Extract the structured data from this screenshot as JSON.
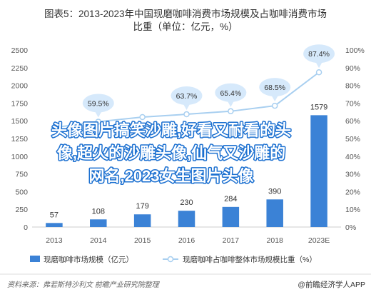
{
  "chart_data": {
    "type": "bar",
    "title_lines": [
      "图表5：2013-2023年中国现磨咖啡消费市场规模及占咖啡消费市场",
      "比重（单位：亿元，%）"
    ],
    "categories": [
      "2013",
      "2014",
      "2015",
      "2016",
      "2017",
      "2018",
      "2023E"
    ],
    "series": [
      {
        "name": "现磨咖啡市场规模（亿元）",
        "type": "bar",
        "axis": "left",
        "values": [
          57,
          108,
          179,
          230,
          284,
          390,
          1579
        ],
        "value_labels": [
          "57",
          "108",
          "179",
          "230",
          "284",
          "390",
          "1579"
        ]
      },
      {
        "name": "现磨咖啡占咖啡整体市场规模比重（%）",
        "type": "line",
        "axis": "right",
        "values": [
          56.2,
          59.5,
          62.1,
          63.7,
          65.4,
          68.5,
          87.4
        ],
        "value_labels": [
          "",
          "59.5%",
          "",
          "63.7%",
          "65.4%",
          "68.5%",
          "87.4%"
        ]
      }
    ],
    "left_ticks": [
      "0",
      "250",
      "500",
      "750",
      "1000",
      "1250",
      "1500",
      "1750",
      "2000",
      "2250",
      "2500"
    ],
    "right_ticks": [
      "0%",
      "10%",
      "20%",
      "30%",
      "40%",
      "50%",
      "60%",
      "70%",
      "80%",
      "90%",
      "100%"
    ],
    "ylim_left": [
      0,
      2500
    ],
    "ylim_right": [
      0,
      100
    ],
    "colors": {
      "bar": "#3b82d6",
      "line": "#a8cff0",
      "bubble": "#d6e9fb",
      "axis": "#cccccc"
    }
  },
  "overlay": {
    "lines": [
      "头像图片搞笑沙雕,好看又耐看的头",
      "像,超火的沙雕头像,仙气又沙雕的",
      "网名,2023女生图片头像"
    ]
  },
  "footer": {
    "source": "资料来源：弗若斯特沙利文 前瞻产业研究院整理",
    "brand": "@前瞻经济学人APP"
  }
}
